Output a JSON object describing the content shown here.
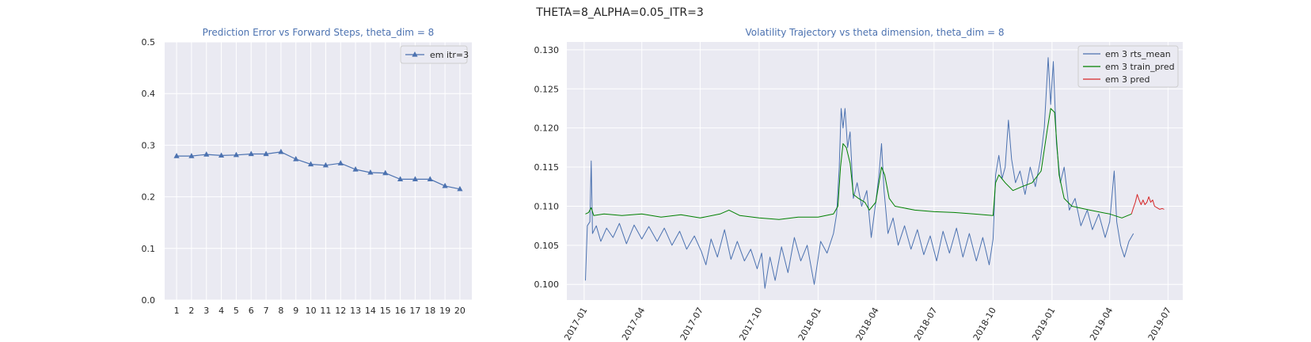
{
  "figure": {
    "suptitle": "THETA=8_ALPHA=0.05_ITR=3"
  },
  "chart_data": [
    {
      "type": "line",
      "title": "Prediction Error vs Forward Steps, theta_dim = 8",
      "xlabel": "",
      "ylabel": "",
      "x": [
        1,
        2,
        3,
        4,
        5,
        6,
        7,
        8,
        9,
        10,
        11,
        12,
        13,
        14,
        15,
        16,
        17,
        18,
        19,
        20
      ],
      "xticks": [
        "1",
        "2",
        "3",
        "4",
        "5",
        "6",
        "7",
        "8",
        "9",
        "10",
        "11",
        "12",
        "13",
        "14",
        "15",
        "16",
        "17",
        "18",
        "19",
        "20"
      ],
      "ylim": [
        0,
        0.5
      ],
      "yticks": [
        "0.0",
        "0.1",
        "0.2",
        "0.3",
        "0.4",
        "0.5"
      ],
      "grid": true,
      "legend_position": "top-right",
      "series": [
        {
          "name": "em itr=3",
          "color": "#4c72b0",
          "marker": "triangle",
          "values": [
            0.279,
            0.279,
            0.282,
            0.28,
            0.281,
            0.283,
            0.283,
            0.287,
            0.273,
            0.263,
            0.261,
            0.265,
            0.253,
            0.247,
            0.246,
            0.234,
            0.234,
            0.234,
            0.221,
            0.215
          ]
        }
      ]
    },
    {
      "type": "line",
      "title": "Volatility Trajectory vs theta dimension, theta_dim = 8",
      "xlabel": "",
      "ylabel": "",
      "xlim": [
        "2016-12-05",
        "2019-07-24"
      ],
      "xticks": [
        "2017-01",
        "2017-04",
        "2017-07",
        "2017-10",
        "2018-01",
        "2018-04",
        "2018-07",
        "2018-10",
        "2019-01",
        "2019-04",
        "2019-07"
      ],
      "ylim": [
        0.098,
        0.131
      ],
      "yticks": [
        "0.100",
        "0.105",
        "0.110",
        "0.115",
        "0.120",
        "0.125",
        "0.130"
      ],
      "grid": true,
      "legend_position": "top-right",
      "series": [
        {
          "name": "em 3 rts_mean",
          "color": "#4c72b0",
          "points": [
            [
              "2017-01-03",
              0.1005
            ],
            [
              "2017-01-06",
              0.1075
            ],
            [
              "2017-01-10",
              0.108
            ],
            [
              "2017-01-12",
              0.1158
            ],
            [
              "2017-01-14",
              0.1065
            ],
            [
              "2017-01-20",
              0.1075
            ],
            [
              "2017-01-27",
              0.1055
            ],
            [
              "2017-02-05",
              0.1072
            ],
            [
              "2017-02-15",
              0.106
            ],
            [
              "2017-02-25",
              0.1078
            ],
            [
              "2017-03-08",
              0.1052
            ],
            [
              "2017-03-20",
              0.1076
            ],
            [
              "2017-04-01",
              0.1058
            ],
            [
              "2017-04-12",
              0.1074
            ],
            [
              "2017-04-25",
              0.1055
            ],
            [
              "2017-05-06",
              0.1072
            ],
            [
              "2017-05-18",
              0.105
            ],
            [
              "2017-05-30",
              0.1068
            ],
            [
              "2017-06-10",
              0.1045
            ],
            [
              "2017-06-22",
              0.1062
            ],
            [
              "2017-07-03",
              0.1042
            ],
            [
              "2017-07-10",
              0.1025
            ],
            [
              "2017-07-18",
              0.1058
            ],
            [
              "2017-07-28",
              0.1035
            ],
            [
              "2017-08-08",
              0.107
            ],
            [
              "2017-08-18",
              0.1032
            ],
            [
              "2017-08-28",
              0.1055
            ],
            [
              "2017-09-08",
              0.103
            ],
            [
              "2017-09-18",
              0.1045
            ],
            [
              "2017-09-28",
              0.102
            ],
            [
              "2017-10-05",
              0.104
            ],
            [
              "2017-10-10",
              0.0995
            ],
            [
              "2017-10-18",
              0.1035
            ],
            [
              "2017-10-26",
              0.1005
            ],
            [
              "2017-11-05",
              0.1048
            ],
            [
              "2017-11-15",
              0.1015
            ],
            [
              "2017-11-25",
              0.106
            ],
            [
              "2017-12-05",
              0.103
            ],
            [
              "2017-12-15",
              0.105
            ],
            [
              "2017-12-26",
              0.1
            ],
            [
              "2018-01-05",
              0.1055
            ],
            [
              "2018-01-15",
              0.104
            ],
            [
              "2018-01-25",
              0.1065
            ],
            [
              "2018-01-30",
              0.109
            ],
            [
              "2018-02-03",
              0.115
            ],
            [
              "2018-02-06",
              0.1225
            ],
            [
              "2018-02-09",
              0.12
            ],
            [
              "2018-02-12",
              0.1225
            ],
            [
              "2018-02-16",
              0.1175
            ],
            [
              "2018-02-20",
              0.1195
            ],
            [
              "2018-02-25",
              0.111
            ],
            [
              "2018-03-03",
              0.113
            ],
            [
              "2018-03-10",
              0.11
            ],
            [
              "2018-03-18",
              0.112
            ],
            [
              "2018-03-25",
              0.106
            ],
            [
              "2018-04-01",
              0.1105
            ],
            [
              "2018-04-06",
              0.114
            ],
            [
              "2018-04-10",
              0.118
            ],
            [
              "2018-04-14",
              0.112
            ],
            [
              "2018-04-20",
              0.1065
            ],
            [
              "2018-04-28",
              0.1085
            ],
            [
              "2018-05-06",
              0.105
            ],
            [
              "2018-05-16",
              0.1075
            ],
            [
              "2018-05-26",
              0.1045
            ],
            [
              "2018-06-05",
              0.107
            ],
            [
              "2018-06-15",
              0.1038
            ],
            [
              "2018-06-25",
              0.1062
            ],
            [
              "2018-07-05",
              0.103
            ],
            [
              "2018-07-15",
              0.1068
            ],
            [
              "2018-07-25",
              0.104
            ],
            [
              "2018-08-05",
              0.1072
            ],
            [
              "2018-08-15",
              0.1035
            ],
            [
              "2018-08-25",
              0.1065
            ],
            [
              "2018-09-05",
              0.103
            ],
            [
              "2018-09-15",
              0.106
            ],
            [
              "2018-09-25",
              0.1025
            ],
            [
              "2018-10-01",
              0.1058
            ],
            [
              "2018-10-05",
              0.114
            ],
            [
              "2018-10-10",
              0.1165
            ],
            [
              "2018-10-15",
              0.1135
            ],
            [
              "2018-10-20",
              0.115
            ],
            [
              "2018-10-25",
              0.121
            ],
            [
              "2018-10-30",
              0.116
            ],
            [
              "2018-11-05",
              0.113
            ],
            [
              "2018-11-12",
              0.1145
            ],
            [
              "2018-11-20",
              0.1115
            ],
            [
              "2018-11-28",
              0.115
            ],
            [
              "2018-12-06",
              0.1125
            ],
            [
              "2018-12-14",
              0.116
            ],
            [
              "2018-12-20",
              0.12
            ],
            [
              "2018-12-26",
              0.129
            ],
            [
              "2018-12-30",
              0.123
            ],
            [
              "2019-01-03",
              0.1285
            ],
            [
              "2019-01-08",
              0.118
            ],
            [
              "2019-01-14",
              0.113
            ],
            [
              "2019-01-20",
              0.115
            ],
            [
              "2019-01-28",
              0.1095
            ],
            [
              "2019-02-06",
              0.111
            ],
            [
              "2019-02-15",
              0.1075
            ],
            [
              "2019-02-25",
              0.1095
            ],
            [
              "2019-03-05",
              0.107
            ],
            [
              "2019-03-15",
              0.109
            ],
            [
              "2019-03-25",
              0.106
            ],
            [
              "2019-04-01",
              0.108
            ],
            [
              "2019-04-08",
              0.1145
            ],
            [
              "2019-04-12",
              0.108
            ],
            [
              "2019-04-18",
              0.105
            ],
            [
              "2019-04-24",
              0.1035
            ],
            [
              "2019-05-01",
              0.1055
            ],
            [
              "2019-05-08",
              0.1065
            ]
          ]
        },
        {
          "name": "em 3 train_pred",
          "color": "#008000",
          "points": [
            [
              "2017-01-03",
              0.109
            ],
            [
              "2017-01-08",
              0.1092
            ],
            [
              "2017-01-12",
              0.1098
            ],
            [
              "2017-01-16",
              0.1088
            ],
            [
              "2017-02-01",
              0.109
            ],
            [
              "2017-03-01",
              0.1088
            ],
            [
              "2017-04-01",
              0.109
            ],
            [
              "2017-05-01",
              0.1086
            ],
            [
              "2017-06-01",
              0.1089
            ],
            [
              "2017-07-01",
              0.1085
            ],
            [
              "2017-08-01",
              0.109
            ],
            [
              "2017-08-15",
              0.1095
            ],
            [
              "2017-09-01",
              0.1088
            ],
            [
              "2017-10-01",
              0.1085
            ],
            [
              "2017-11-01",
              0.1083
            ],
            [
              "2017-12-01",
              0.1086
            ],
            [
              "2018-01-01",
              0.1086
            ],
            [
              "2018-01-25",
              0.109
            ],
            [
              "2018-02-01",
              0.11
            ],
            [
              "2018-02-05",
              0.115
            ],
            [
              "2018-02-09",
              0.118
            ],
            [
              "2018-02-14",
              0.1175
            ],
            [
              "2018-02-20",
              0.1155
            ],
            [
              "2018-02-25",
              0.1115
            ],
            [
              "2018-03-05",
              0.111
            ],
            [
              "2018-03-15",
              0.1105
            ],
            [
              "2018-03-22",
              0.1095
            ],
            [
              "2018-04-01",
              0.1105
            ],
            [
              "2018-04-05",
              0.1125
            ],
            [
              "2018-04-10",
              0.115
            ],
            [
              "2018-04-15",
              0.114
            ],
            [
              "2018-04-22",
              0.111
            ],
            [
              "2018-05-01",
              0.11
            ],
            [
              "2018-06-01",
              0.1095
            ],
            [
              "2018-07-01",
              0.1093
            ],
            [
              "2018-08-01",
              0.1092
            ],
            [
              "2018-09-01",
              0.109
            ],
            [
              "2018-10-01",
              0.1088
            ],
            [
              "2018-10-05",
              0.113
            ],
            [
              "2018-10-10",
              0.114
            ],
            [
              "2018-10-20",
              0.113
            ],
            [
              "2018-11-01",
              0.112
            ],
            [
              "2018-11-15",
              0.1125
            ],
            [
              "2018-12-01",
              0.113
            ],
            [
              "2018-12-15",
              0.1145
            ],
            [
              "2018-12-25",
              0.12
            ],
            [
              "2018-12-30",
              0.1225
            ],
            [
              "2019-01-05",
              0.122
            ],
            [
              "2019-01-12",
              0.114
            ],
            [
              "2019-01-20",
              0.111
            ],
            [
              "2019-02-01",
              0.11
            ],
            [
              "2019-03-01",
              0.1095
            ],
            [
              "2019-04-01",
              0.109
            ],
            [
              "2019-04-20",
              0.1085
            ],
            [
              "2019-05-05",
              0.109
            ]
          ]
        },
        {
          "name": "em 3 pred",
          "color": "#d62728",
          "points": [
            [
              "2019-05-05",
              0.109
            ],
            [
              "2019-05-08",
              0.1098
            ],
            [
              "2019-05-11",
              0.1105
            ],
            [
              "2019-05-14",
              0.1115
            ],
            [
              "2019-05-17",
              0.1108
            ],
            [
              "2019-05-20",
              0.1102
            ],
            [
              "2019-05-23",
              0.1108
            ],
            [
              "2019-05-26",
              0.1102
            ],
            [
              "2019-05-29",
              0.1105
            ],
            [
              "2019-06-01",
              0.1112
            ],
            [
              "2019-06-04",
              0.1105
            ],
            [
              "2019-06-07",
              0.1108
            ],
            [
              "2019-06-10",
              0.11
            ],
            [
              "2019-06-14",
              0.1098
            ],
            [
              "2019-06-18",
              0.1096
            ],
            [
              "2019-06-22",
              0.1097
            ],
            [
              "2019-06-25",
              0.1096
            ]
          ]
        }
      ]
    }
  ]
}
